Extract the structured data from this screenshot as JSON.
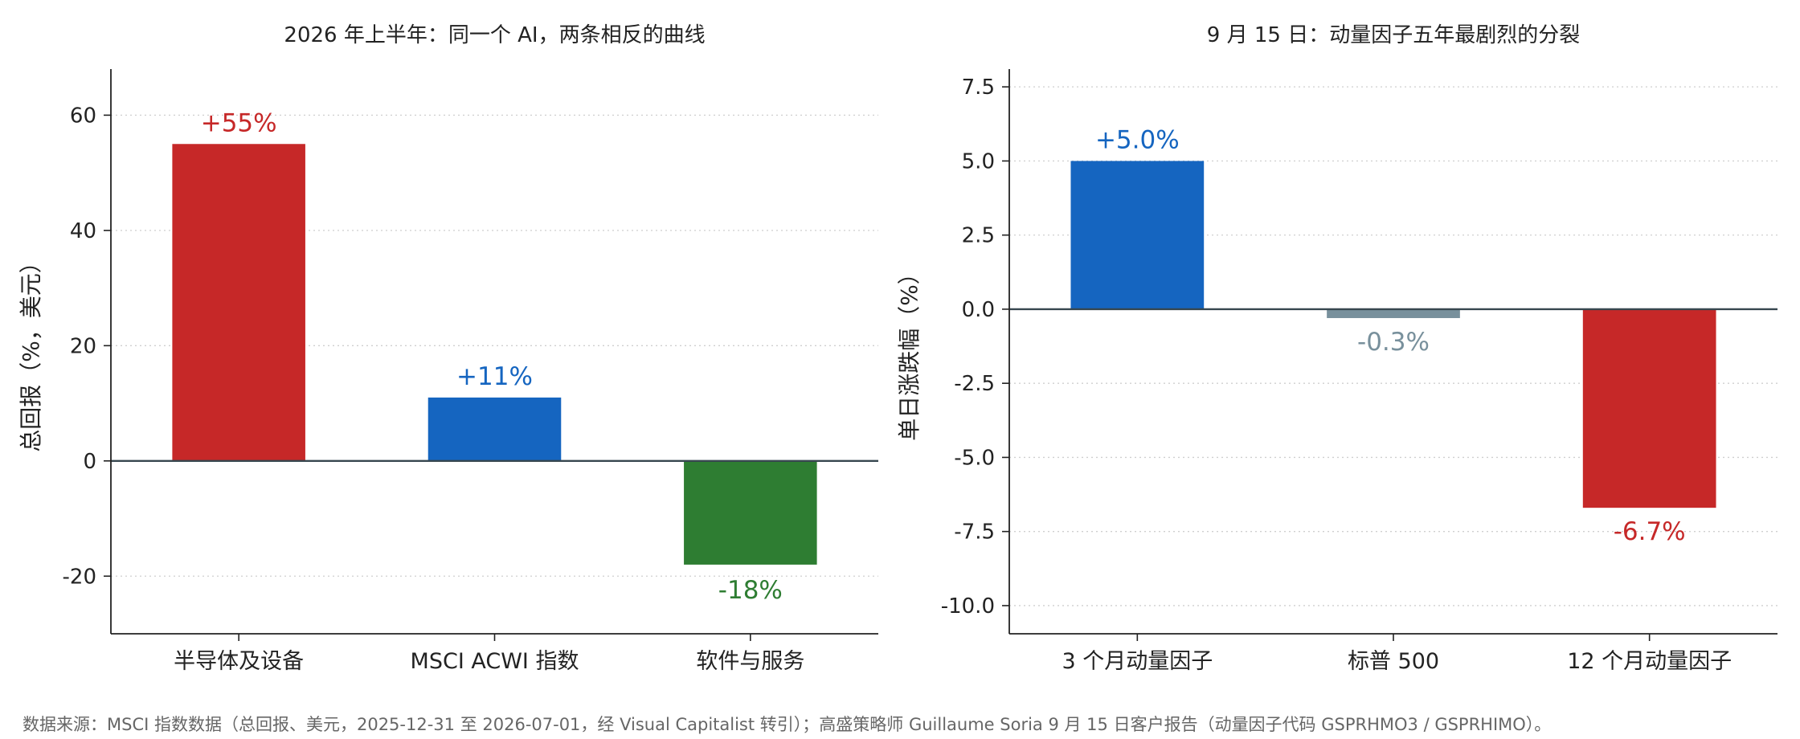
{
  "chart_data": [
    {
      "type": "bar",
      "title": "2026 年上半年：同一个 AI，两条相反的曲线",
      "xlabel": "",
      "ylabel": "总回报（%，美元）",
      "categories": [
        "半导体及设备",
        "MSCI ACWI 指数",
        "软件与服务"
      ],
      "values": [
        55,
        11,
        -18
      ],
      "data_labels": [
        "+55%",
        "+11%",
        "-18%"
      ],
      "colors": [
        "#c62828",
        "#1565c0",
        "#2e7d32"
      ],
      "ylim": [
        -30,
        68
      ],
      "yticks": [
        -20,
        0,
        20,
        40,
        60
      ],
      "ytick_labels": [
        "-20",
        "0",
        "20",
        "40",
        "60"
      ],
      "grid": "horizontal-dotted"
    },
    {
      "type": "bar",
      "title": "9 月 15 日：动量因子五年最剧烈的分裂",
      "xlabel": "",
      "ylabel": "单日涨跌幅（%）",
      "categories": [
        "3 个月动量因子",
        "标普 500",
        "12 个月动量因子"
      ],
      "values": [
        5.0,
        -0.3,
        -6.7
      ],
      "data_labels": [
        "+5.0%",
        "-0.3%",
        "-6.7%"
      ],
      "colors": [
        "#1565c0",
        "#78909c",
        "#c62828"
      ],
      "ylim": [
        -10.95,
        8.1
      ],
      "yticks": [
        -10.0,
        -7.5,
        -5.0,
        -2.5,
        0.0,
        2.5,
        5.0,
        7.5
      ],
      "ytick_labels": [
        "-10.0",
        "-7.5",
        "-5.0",
        "-2.5",
        "0.0",
        "2.5",
        "5.0",
        "7.5"
      ],
      "grid": "horizontal-dotted"
    }
  ],
  "source_note": "数据来源：MSCI 指数数据（总回报、美元，2025-12-31 至 2026-07-01，经 Visual Capitalist 转引）；高盛策略师 Guillaume Soria 9 月 15 日客户报告（动量因子代码 GSPRHMO3 / GSPRHIMO）。"
}
